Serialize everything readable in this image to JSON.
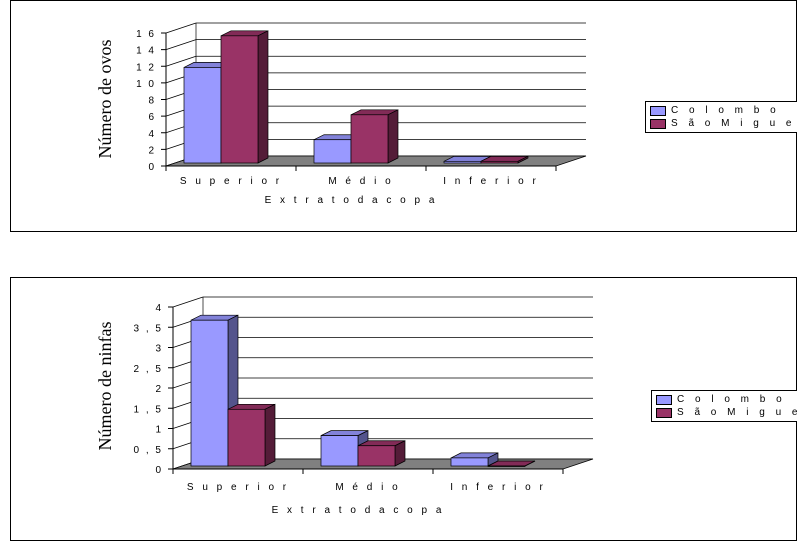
{
  "colors": {
    "series0": "#9999ff",
    "series1": "#993366",
    "floor": "#808080"
  },
  "chart_data": [
    {
      "type": "bar",
      "categories": [
        "Superior",
        "Médio",
        "Inferior"
      ],
      "category_labels": [
        "S u p e r i o r",
        "M  é d i o",
        "I n f e r i o r"
      ],
      "series": [
        {
          "name": "Colombo",
          "legend_label": "C o l o m b o",
          "values": [
            11.5,
            2.8,
            0.2
          ]
        },
        {
          "name": "São Miguel",
          "legend_label": "S ã o  M  i g u e l",
          "values": [
            15.3,
            5.8,
            0.2
          ]
        }
      ],
      "ylabel": "Número de ovos",
      "xlabel": "E x t r a t o  d a c o p a",
      "ylim": [
        0,
        16
      ],
      "ytick_values": [
        0,
        2,
        4,
        6,
        8,
        10,
        12,
        14,
        16
      ],
      "ytick_labels": [
        "0",
        "2",
        "4",
        "6",
        "8",
        "1 0",
        "1 2",
        "1 4",
        "1 6"
      ],
      "grid": true,
      "legend": "right"
    },
    {
      "type": "bar",
      "categories": [
        "Superior",
        "Médio",
        "Inferior"
      ],
      "category_labels": [
        "S u p e r i o r",
        "M  é d i o",
        "I n f e r i o r"
      ],
      "series": [
        {
          "name": "Colombo",
          "legend_label": "C o l o m b o",
          "values": [
            3.6,
            0.75,
            0.2
          ]
        },
        {
          "name": "São Miguel",
          "legend_label": "S ã o  M  i g u e l",
          "values": [
            1.4,
            0.5,
            0.0
          ]
        }
      ],
      "ylabel": "Número de ninfas",
      "xlabel": "E x t r a t o  d a c o p a",
      "ylim": [
        0,
        4
      ],
      "ytick_values": [
        0,
        0.5,
        1,
        1.5,
        2,
        2.5,
        3,
        3.5,
        4
      ],
      "ytick_labels": [
        "0",
        "0 , 5",
        "1",
        "1 , 5",
        "2",
        "2 , 5",
        "3",
        "3 , 5",
        "4"
      ],
      "grid": true,
      "legend": "right"
    }
  ]
}
